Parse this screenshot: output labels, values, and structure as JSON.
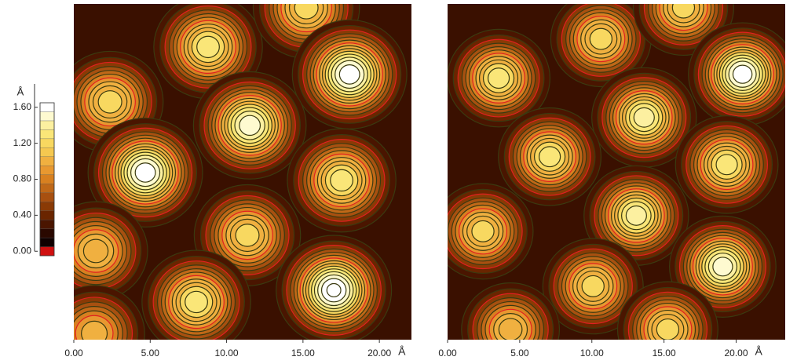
{
  "chart_data": [
    {
      "type": "contour",
      "xlabel": "Å",
      "xlim": [
        0,
        22.1
      ],
      "ylim": [
        0,
        22.0
      ],
      "xticks": [
        {
          "value": 0,
          "label": "0.00"
        },
        {
          "value": 5,
          "label": "5.00"
        },
        {
          "value": 10,
          "label": "10.00"
        },
        {
          "value": 15,
          "label": "15.00"
        },
        {
          "value": 20,
          "label": "20.00"
        }
      ],
      "peaks": {
        "x": [
          8.79,
          15.22,
          18.05,
          2.37,
          11.52,
          4.68,
          17.53,
          11.36,
          1.44,
          8.02,
          17.02,
          1.34
        ],
        "y": [
          19.18,
          21.75,
          17.38,
          15.58,
          14.04,
          10.95,
          10.44,
          6.84,
          5.81,
          2.47,
          3.24,
          0.41
        ],
        "values": [
          1.3,
          1.2,
          1.6,
          1.2,
          1.5,
          1.6,
          1.3,
          1.2,
          1.1,
          1.3,
          1.65,
          1.0
        ]
      },
      "colorbar": {
        "label": "Å",
        "lim": [
          -0.05,
          1.65
        ],
        "ticks": [
          {
            "value": 0,
            "label": "0.00"
          },
          {
            "value": 0.4,
            "label": "0.40"
          },
          {
            "value": 0.8,
            "label": "0.80"
          },
          {
            "value": 1.2,
            "label": "1.20"
          },
          {
            "value": 1.6,
            "label": "1.60"
          }
        ],
        "colors": [
          "#d01010",
          "#100000",
          "#2a0800",
          "#4a1500",
          "#6a2500",
          "#8a3a05",
          "#a85010",
          "#c06818",
          "#d88020",
          "#e89830",
          "#f0b040",
          "#f5c850",
          "#f8d860",
          "#fae678",
          "#fcf0a0",
          "#fefad0",
          "#ffffff"
        ]
      }
    },
    {
      "type": "contour",
      "xlabel": "Å",
      "xlim": [
        0,
        23.4
      ],
      "ylim": [
        0,
        23.3
      ],
      "xticks": [
        {
          "value": 0,
          "label": "0.00"
        },
        {
          "value": 5,
          "label": "5.00"
        },
        {
          "value": 10,
          "label": "10.00"
        },
        {
          "value": 15,
          "label": "15.00"
        },
        {
          "value": 20,
          "label": "20.00"
        }
      ],
      "peaks": {
        "x": [
          10.63,
          16.35,
          20.44,
          3.54,
          13.62,
          7.08,
          19.35,
          2.45,
          13.08,
          10.08,
          19.07,
          4.36,
          15.26
        ],
        "y": [
          20.87,
          23.05,
          18.42,
          18.15,
          15.42,
          12.7,
          12.15,
          7.52,
          8.61,
          3.71,
          5.07,
          0.71,
          0.71
        ],
        "values": [
          1.2,
          1.2,
          1.6,
          1.3,
          1.4,
          1.3,
          1.3,
          1.2,
          1.4,
          1.2,
          1.5,
          1.1,
          1.2
        ]
      }
    }
  ]
}
